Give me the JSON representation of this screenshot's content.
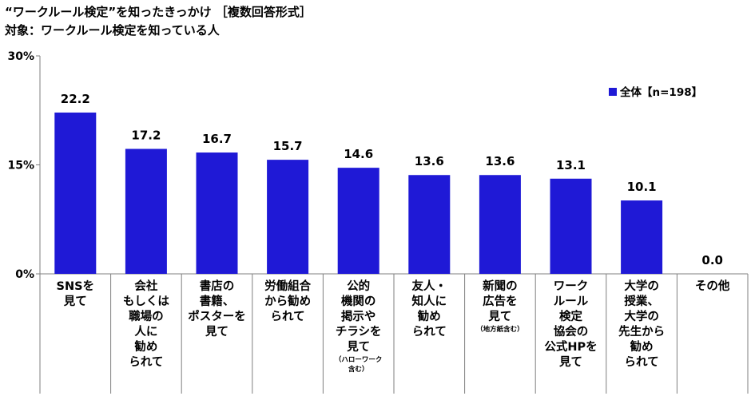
{
  "title_line1": "“ワークルール検定”を知ったきっかけ ［複数回答形式］",
  "title_line2": "対象：ワークルール検定を知っている人",
  "colors": {
    "bar": "#1f19d6",
    "axis": "#7f7f7f"
  },
  "chart_data": {
    "type": "bar",
    "title": "“ワークルール検定”を知ったきっかけ ［複数回答形式］",
    "subtitle": "対象：ワークルール検定を知っている人",
    "ylim": [
      0,
      30
    ],
    "yticks": [
      0,
      15,
      30
    ],
    "ytick_labels": [
      "0%",
      "15%",
      "30%"
    ],
    "grid": false,
    "legend_position": "top-right",
    "categories": [
      "SNSを見て",
      "会社もしくは職場の人に勧められて",
      "書店の書籍、ポスターを見て",
      "労働組合から勧められて",
      "公的機関の掲示やチラシを見て（ハローワーク含む）",
      "友人・知人に勧められて",
      "新聞の広告を見て（地方紙含む）",
      "ワークルール検定協会の公式HPを見て",
      "大学の授業、大学の先生から勧められて",
      "その他"
    ],
    "category_lines": [
      {
        "lines": [
          "SNSを",
          "見て"
        ],
        "note": []
      },
      {
        "lines": [
          "会社",
          "もしくは",
          "職場の",
          "人に",
          "勧め",
          "られて"
        ],
        "note": []
      },
      {
        "lines": [
          "書店の",
          "書籍、",
          "ポスターを",
          "見て"
        ],
        "note": []
      },
      {
        "lines": [
          "労働組合",
          "から勧め",
          "られて"
        ],
        "note": []
      },
      {
        "lines": [
          "公的",
          "機関の",
          "掲示や",
          "チラシを",
          "見て"
        ],
        "note": [
          "（ハローワーク",
          "含む）"
        ]
      },
      {
        "lines": [
          "友人・",
          "知人に",
          "勧め",
          "られて"
        ],
        "note": []
      },
      {
        "lines": [
          "新聞の",
          "広告を",
          "見て"
        ],
        "note": [
          "（地方紙含む）"
        ]
      },
      {
        "lines": [
          "ワーク",
          "ルール",
          "検定",
          "協会の",
          "公式HPを",
          "見て"
        ],
        "note": []
      },
      {
        "lines": [
          "大学の",
          "授業、",
          "大学の",
          "先生から",
          "勧め",
          "られて"
        ],
        "note": []
      },
      {
        "lines": [
          "その他"
        ],
        "note": []
      }
    ],
    "series": [
      {
        "name": "全体【n=198】",
        "values": [
          22.2,
          17.2,
          16.7,
          15.7,
          14.6,
          13.6,
          13.6,
          13.1,
          10.1,
          0.0
        ]
      }
    ]
  }
}
